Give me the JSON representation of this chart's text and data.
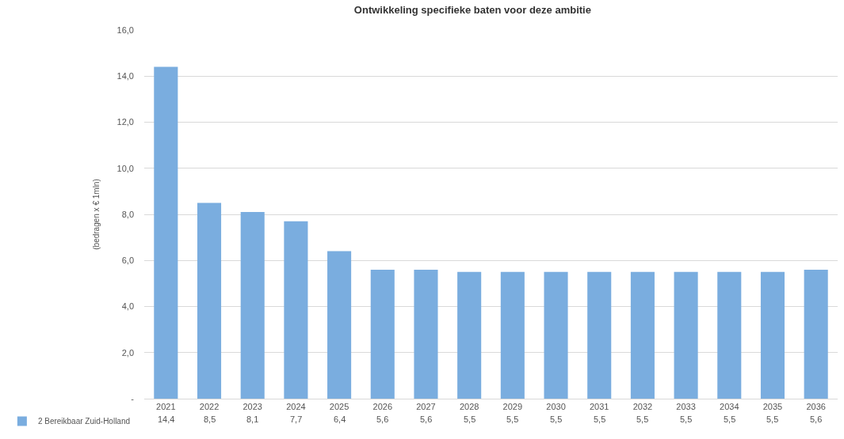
{
  "chart_data": {
    "type": "bar",
    "title": "Ontwikkeling specifieke baten voor deze ambitie",
    "ylabel": "(bedragen x € 1mln)",
    "categories": [
      "2021",
      "2022",
      "2023",
      "2024",
      "2025",
      "2026",
      "2027",
      "2028",
      "2029",
      "2030",
      "2031",
      "2032",
      "2033",
      "2034",
      "2035",
      "2036"
    ],
    "series": [
      {
        "name": "2 Bereikbaar Zuid-Holland",
        "color": "#7aaddf",
        "values": [
          14.4,
          8.5,
          8.1,
          7.7,
          6.4,
          5.6,
          5.6,
          5.5,
          5.5,
          5.5,
          5.5,
          5.5,
          5.5,
          5.5,
          5.5,
          5.6
        ],
        "value_labels": [
          "14,4",
          "8,5",
          "8,1",
          "7,7",
          "6,4",
          "5,6",
          "5,6",
          "5,5",
          "5,5",
          "5,5",
          "5,5",
          "5,5",
          "5,5",
          "5,5",
          "5,5",
          "5,6"
        ]
      }
    ],
    "ylim": [
      0,
      16
    ],
    "yticks": [
      {
        "value": 0,
        "label": "-"
      },
      {
        "value": 2,
        "label": "2,0"
      },
      {
        "value": 4,
        "label": "4,0"
      },
      {
        "value": 6,
        "label": "6,0"
      },
      {
        "value": 8,
        "label": "8,0"
      },
      {
        "value": 10,
        "label": "10,0"
      },
      {
        "value": 12,
        "label": "12,0"
      },
      {
        "value": 14,
        "label": "14,0"
      },
      {
        "value": 16,
        "label": "16,0"
      }
    ],
    "grid": "y",
    "legend": "bottom left"
  }
}
